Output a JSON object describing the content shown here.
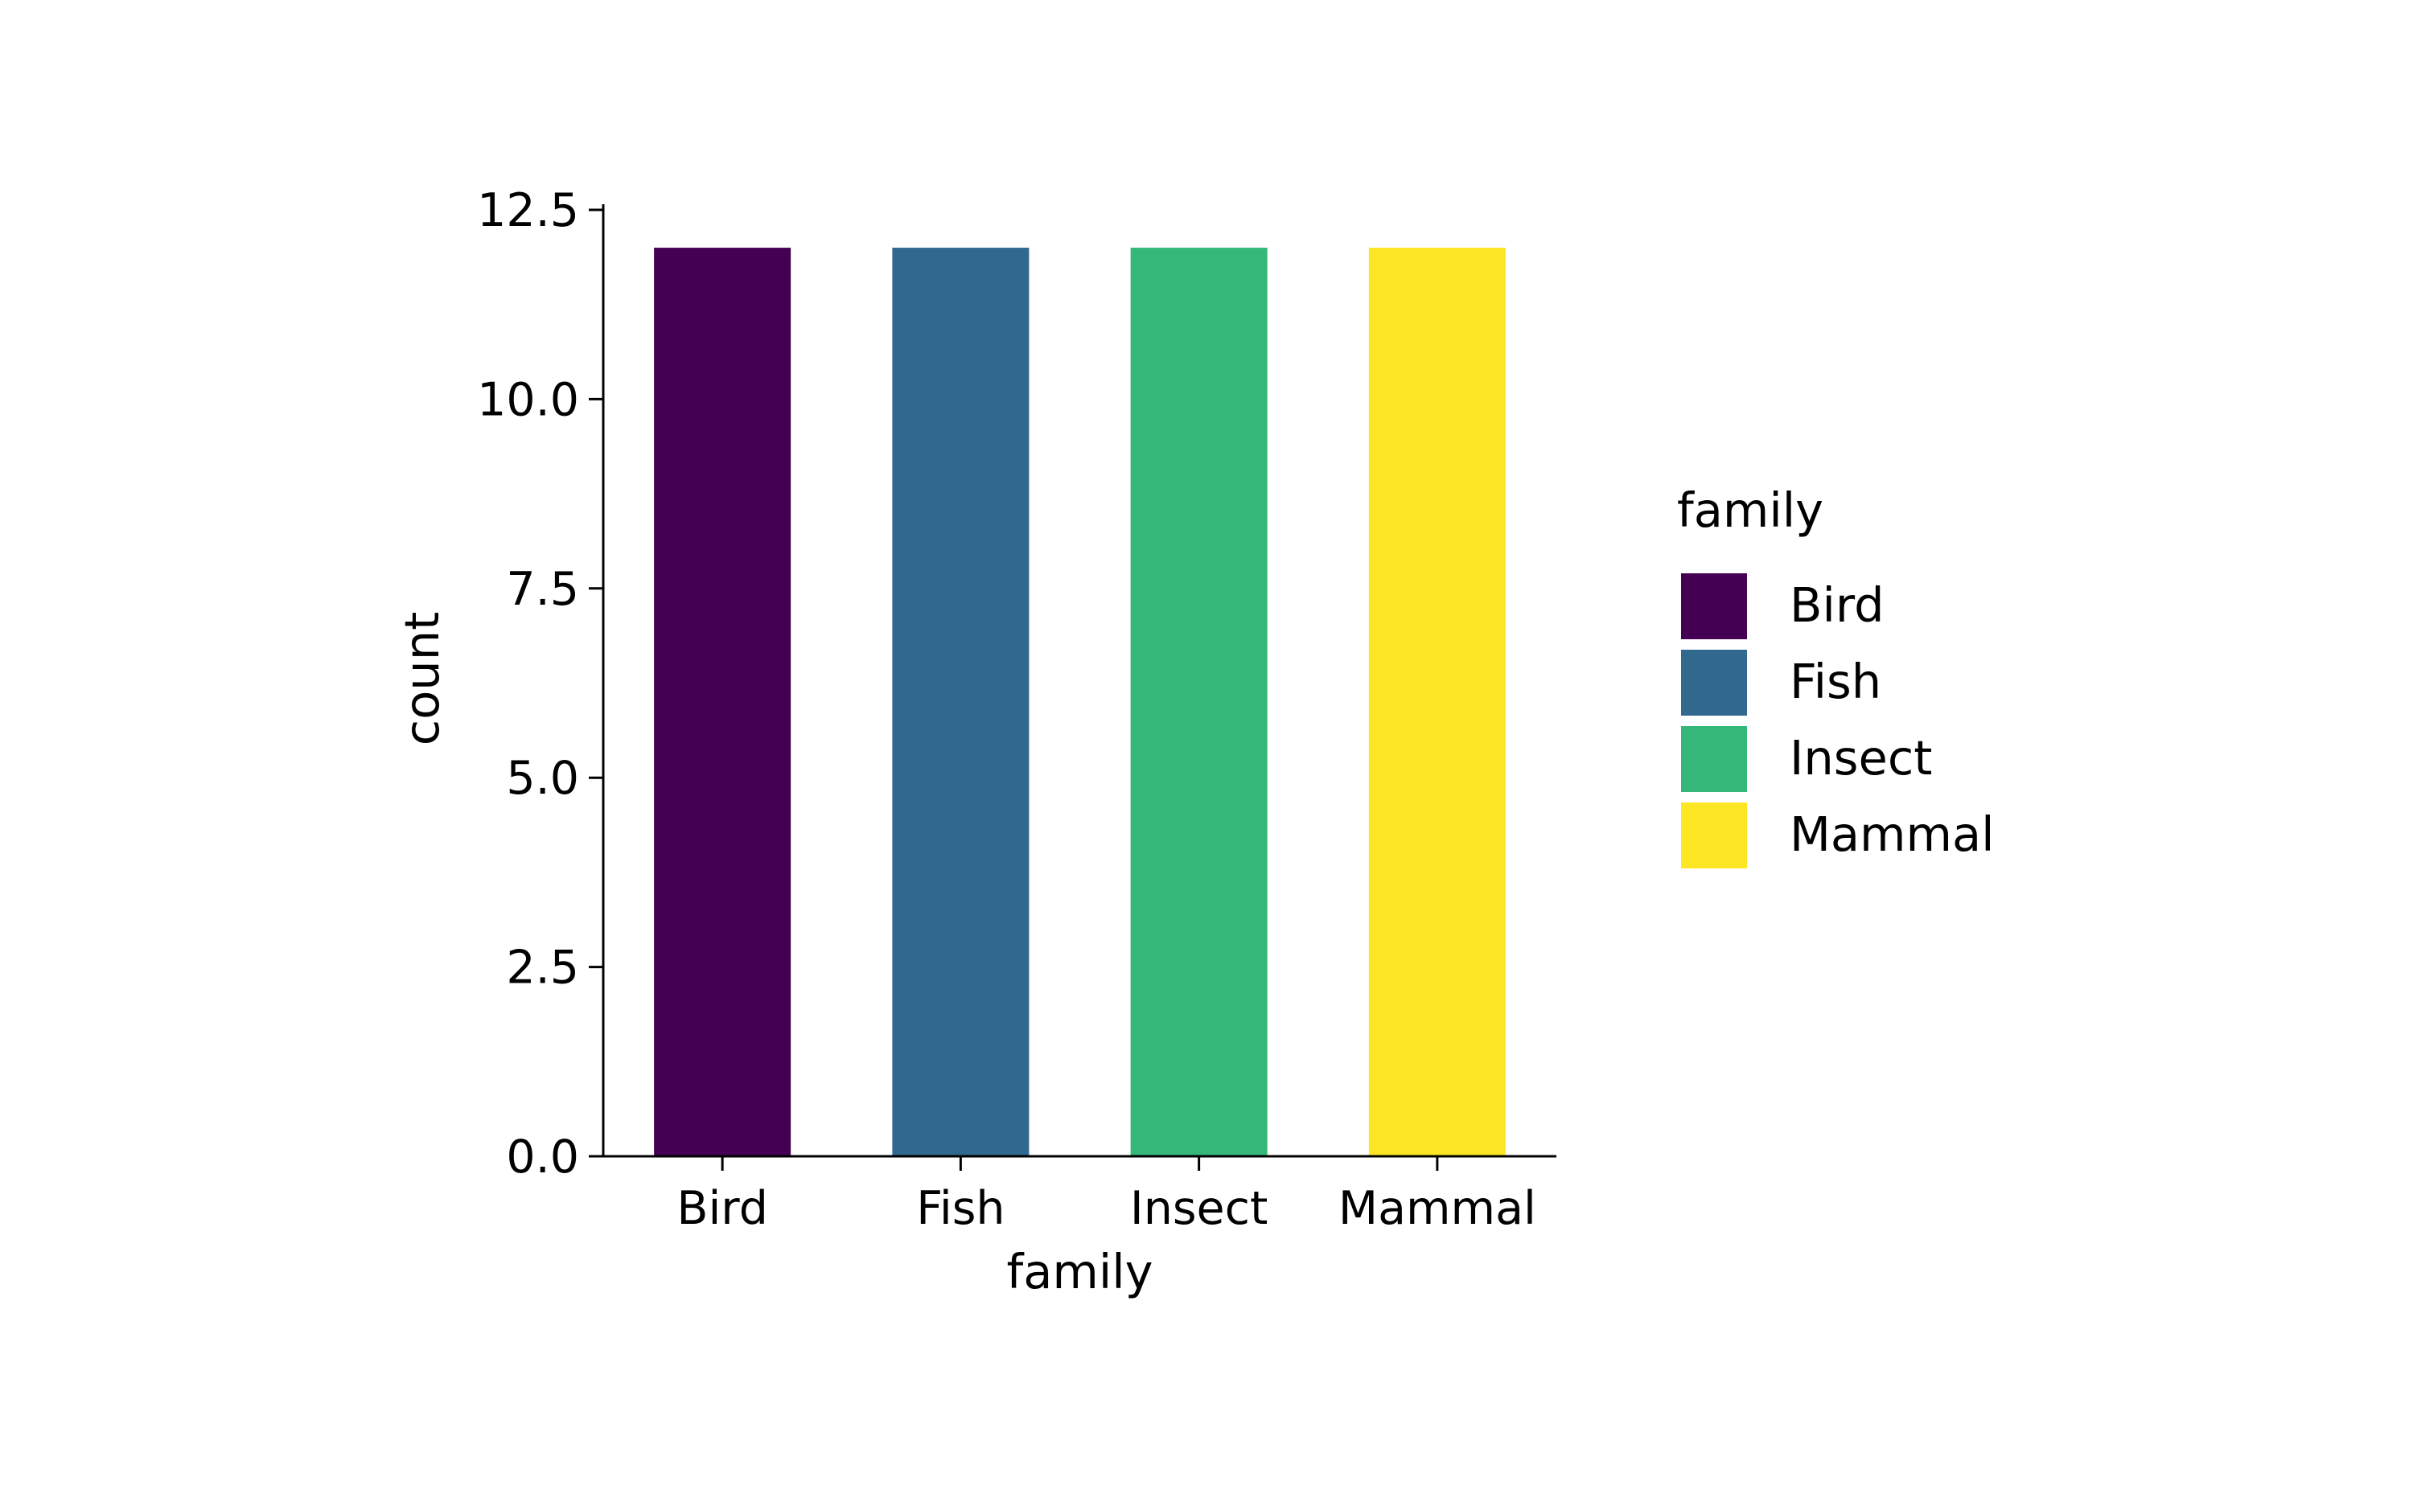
{
  "chart_data": {
    "type": "bar",
    "categories": [
      "Bird",
      "Fish",
      "Insect",
      "Mammal"
    ],
    "values": [
      12,
      12,
      12,
      12
    ],
    "colors": [
      "#440154",
      "#31688e",
      "#35b779",
      "#fde725"
    ],
    "title": "",
    "xlabel": "family",
    "ylabel": "count",
    "ylim": [
      0,
      12.5
    ],
    "yticks": [
      0.0,
      2.5,
      5.0,
      7.5,
      10.0,
      12.5
    ],
    "ytick_labels": [
      "0.0",
      "2.5",
      "5.0",
      "7.5",
      "10.0",
      "12.5"
    ],
    "grid": false,
    "legend": {
      "title": "family",
      "placement": "right",
      "entries": [
        "Bird",
        "Fish",
        "Insect",
        "Mammal"
      ]
    }
  }
}
